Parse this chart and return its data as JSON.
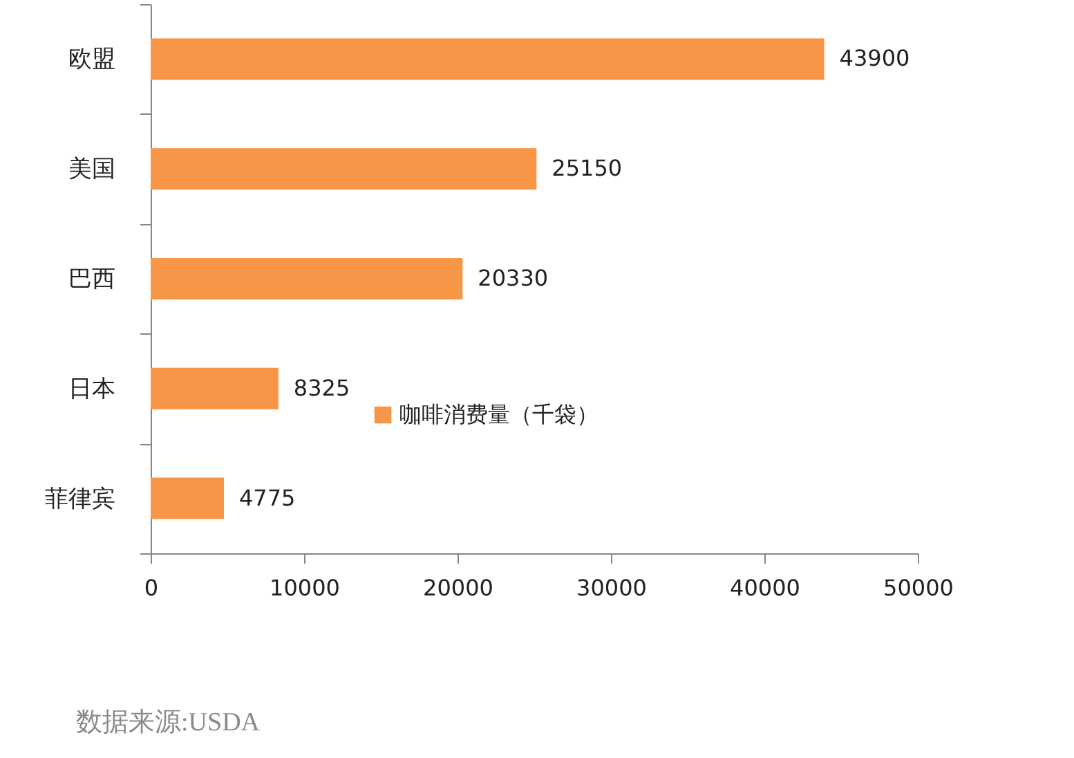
{
  "chart_data": {
    "type": "bar",
    "orientation": "horizontal",
    "categories": [
      "欧盟",
      "美国",
      "巴西",
      "日本",
      "菲律宾"
    ],
    "series": [
      {
        "name": "咖啡消费量（千袋）",
        "color": "#f79646",
        "values": [
          43900,
          25150,
          20330,
          8325,
          4775
        ]
      }
    ],
    "xlim": [
      0,
      50000
    ],
    "xticks": [
      0,
      10000,
      20000,
      30000,
      40000,
      50000
    ],
    "data_labels": true,
    "grid": false,
    "legend": "bottom",
    "annotations": [
      "数据来源:USDA"
    ]
  }
}
